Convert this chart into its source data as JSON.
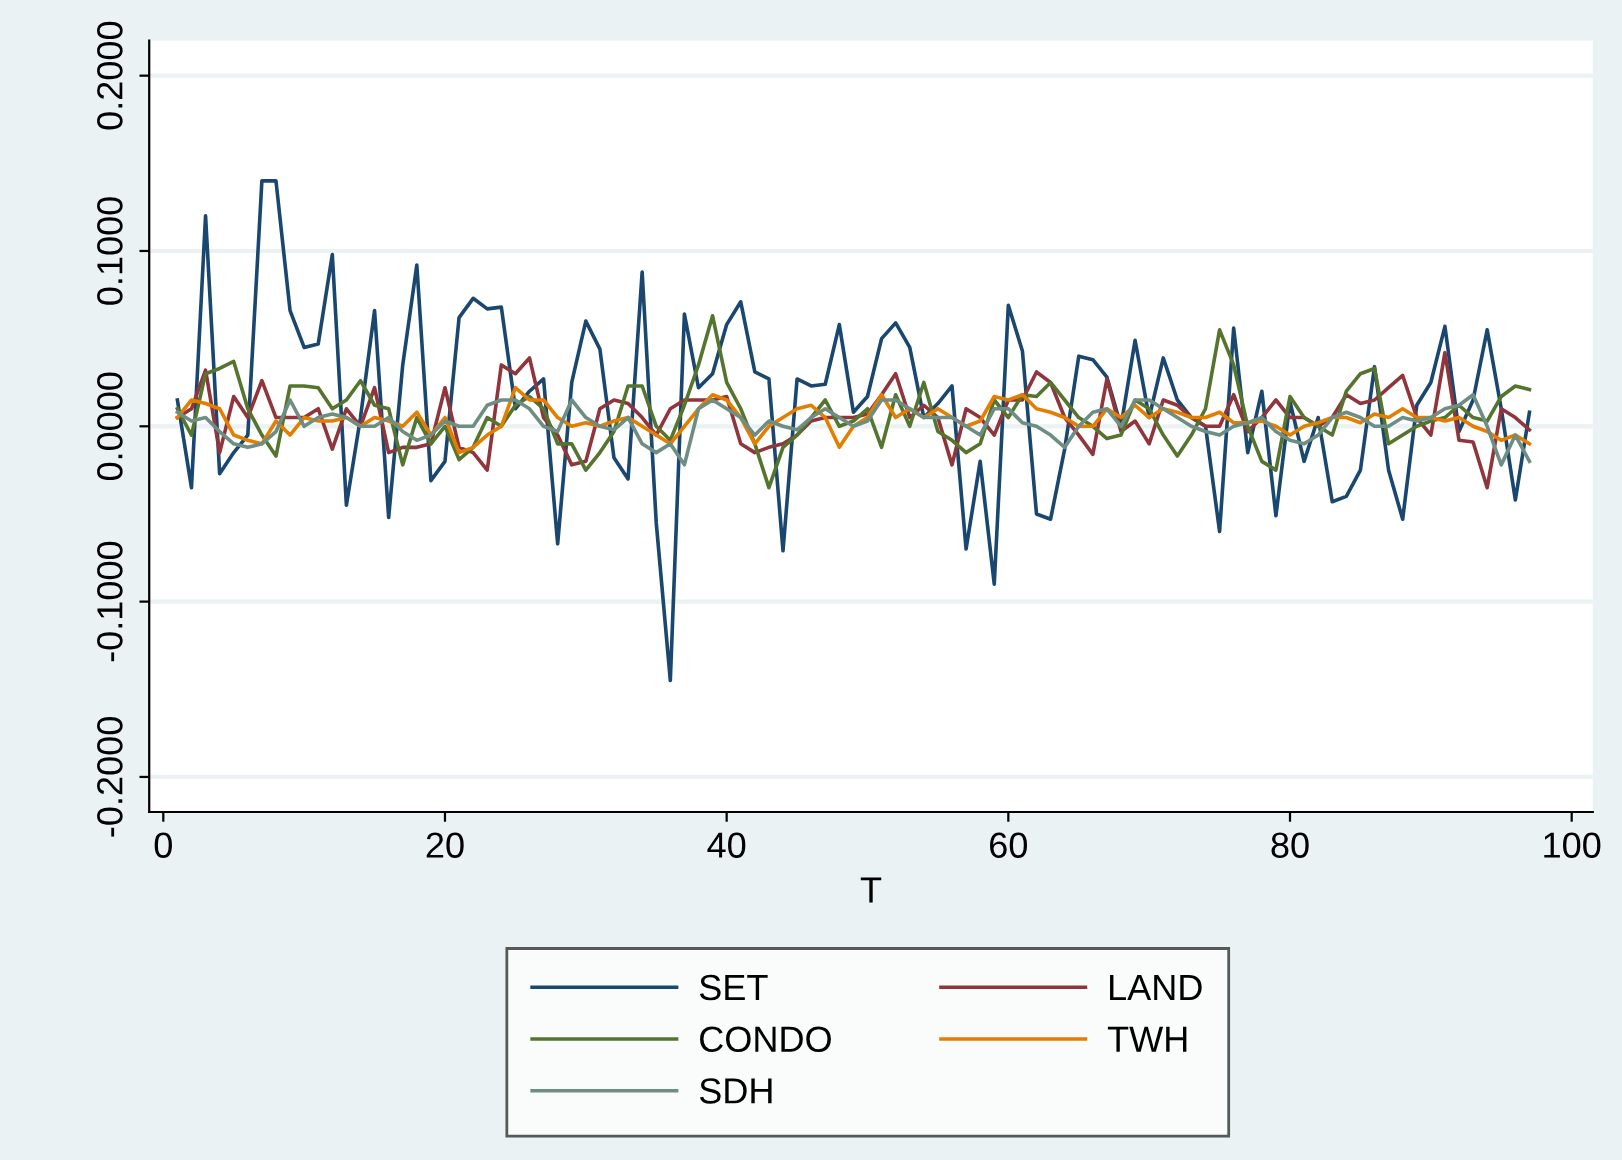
{
  "chart_data": {
    "type": "line",
    "xlabel": "T",
    "x": [
      1,
      2,
      3,
      4,
      5,
      6,
      7,
      8,
      9,
      10,
      11,
      12,
      13,
      14,
      15,
      16,
      17,
      18,
      19,
      20,
      21,
      22,
      23,
      24,
      25,
      26,
      27,
      28,
      29,
      30,
      31,
      32,
      33,
      34,
      35,
      36,
      37,
      38,
      39,
      40,
      41,
      42,
      43,
      44,
      45,
      46,
      47,
      48,
      49,
      50,
      51,
      52,
      53,
      54,
      55,
      56,
      57,
      58,
      59,
      60,
      61,
      62,
      63,
      64,
      65,
      66,
      67,
      68,
      69,
      70,
      71,
      72,
      73,
      74,
      75,
      76,
      77,
      78,
      79,
      80,
      81,
      82,
      83,
      84,
      85,
      86,
      87,
      88,
      89,
      90,
      91,
      92,
      93,
      94,
      95,
      96,
      97
    ],
    "series": [
      {
        "name": "SET",
        "color": "#1a476f",
        "values": [
          0.015,
          -0.035,
          0.12,
          -0.027,
          -0.015,
          -0.005,
          0.14,
          0.14,
          0.066,
          0.045,
          0.047,
          0.098,
          -0.045,
          0.005,
          0.066,
          -0.052,
          0.035,
          0.092,
          -0.031,
          -0.02,
          0.062,
          0.073,
          0.067,
          0.068,
          0.01,
          0.02,
          0.027,
          -0.067,
          0.025,
          0.06,
          0.044,
          -0.018,
          -0.03,
          0.088,
          -0.055,
          -0.145,
          0.064,
          0.022,
          0.03,
          0.058,
          0.071,
          0.031,
          0.027,
          -0.071,
          0.027,
          0.023,
          0.024,
          0.058,
          0.008,
          0.017,
          0.05,
          0.059,
          0.045,
          0.005,
          0.013,
          0.023,
          -0.07,
          -0.02,
          -0.09,
          0.069,
          0.043,
          -0.05,
          -0.053,
          -0.013,
          0.04,
          0.038,
          0.028,
          0.0,
          0.049,
          0.005,
          0.039,
          0.015,
          0.005,
          0.0,
          -0.06,
          0.056,
          -0.015,
          0.02,
          -0.051,
          0.014,
          -0.02,
          0.005,
          -0.043,
          -0.04,
          -0.025,
          0.034,
          -0.025,
          -0.053,
          0.012,
          0.025,
          0.057,
          -0.003,
          0.015,
          0.055,
          0.01,
          -0.042,
          0.008
        ]
      },
      {
        "name": "LAND",
        "color": "#90353b",
        "values": [
          0.005,
          0.01,
          0.032,
          -0.015,
          0.017,
          0.005,
          0.026,
          0.005,
          0.005,
          0.005,
          0.01,
          -0.013,
          0.01,
          0.0,
          0.022,
          -0.015,
          -0.012,
          -0.012,
          -0.01,
          0.022,
          -0.012,
          -0.015,
          -0.025,
          0.035,
          0.03,
          0.039,
          0.005,
          -0.005,
          -0.022,
          -0.02,
          0.01,
          0.015,
          0.013,
          0.005,
          -0.005,
          0.01,
          0.015,
          0.015,
          0.015,
          0.017,
          -0.01,
          -0.015,
          -0.012,
          -0.01,
          -0.005,
          0.003,
          0.005,
          0.005,
          0.005,
          0.007,
          0.018,
          0.03,
          0.005,
          0.012,
          0.005,
          -0.022,
          0.01,
          0.005,
          -0.005,
          0.015,
          0.015,
          0.031,
          0.025,
          0.005,
          -0.005,
          -0.016,
          0.027,
          -0.003,
          0.003,
          -0.01,
          0.015,
          0.012,
          0.005,
          0.0,
          0.0,
          0.018,
          -0.003,
          0.005,
          0.015,
          0.005,
          0.005,
          0.0,
          0.005,
          0.018,
          0.013,
          0.015,
          0.022,
          0.029,
          0.005,
          -0.005,
          0.042,
          -0.008,
          -0.009,
          -0.035,
          0.01,
          0.005,
          -0.002
        ]
      },
      {
        "name": "CONDO",
        "color": "#55752f",
        "values": [
          0.01,
          -0.005,
          0.03,
          0.033,
          0.037,
          0.01,
          -0.005,
          -0.017,
          0.023,
          0.023,
          0.022,
          0.01,
          0.015,
          0.026,
          0.012,
          0.01,
          -0.022,
          0.005,
          -0.01,
          0.0,
          -0.019,
          -0.012,
          0.005,
          0.0,
          0.012,
          0.017,
          0.01,
          -0.01,
          -0.01,
          -0.025,
          -0.015,
          -0.003,
          0.023,
          0.023,
          0.0,
          -0.008,
          0.012,
          0.035,
          0.063,
          0.025,
          0.01,
          -0.01,
          -0.035,
          -0.012,
          -0.005,
          0.005,
          0.015,
          0.0,
          0.003,
          0.01,
          -0.012,
          0.018,
          0.0,
          0.025,
          -0.003,
          -0.008,
          -0.015,
          -0.01,
          0.015,
          0.005,
          0.018,
          0.017,
          0.025,
          0.015,
          0.005,
          0.0,
          -0.007,
          -0.005,
          0.015,
          0.01,
          -0.005,
          -0.017,
          -0.005,
          0.01,
          0.055,
          0.035,
          0.0,
          -0.02,
          -0.025,
          0.017,
          0.005,
          0.0,
          -0.005,
          0.02,
          0.03,
          0.033,
          -0.01,
          -0.005,
          0.0,
          0.003,
          0.005,
          0.012,
          0.005,
          0.003,
          0.017,
          0.023,
          0.021
        ]
      },
      {
        "name": "TWH",
        "color": "#e37e00",
        "values": [
          0.005,
          0.015,
          0.013,
          0.01,
          -0.005,
          -0.008,
          -0.01,
          0.003,
          -0.005,
          0.005,
          0.003,
          0.003,
          0.005,
          0.0,
          0.005,
          0.003,
          0.0,
          0.008,
          -0.005,
          0.005,
          -0.015,
          -0.012,
          -0.005,
          0.0,
          0.022,
          0.015,
          0.015,
          0.005,
          0.0,
          0.002,
          0.0,
          0.003,
          0.005,
          0.0,
          -0.005,
          -0.01,
          0.0,
          0.01,
          0.018,
          0.015,
          0.005,
          -0.01,
          0.0,
          0.005,
          0.01,
          0.012,
          0.005,
          -0.012,
          0.0,
          0.005,
          0.018,
          0.005,
          0.01,
          0.005,
          0.01,
          0.005,
          0.0,
          0.003,
          0.017,
          0.015,
          0.018,
          0.01,
          0.008,
          0.005,
          0.0,
          0.0,
          0.01,
          0.005,
          0.012,
          0.005,
          0.01,
          0.008,
          0.005,
          0.005,
          0.008,
          0.002,
          0.002,
          0.003,
          0.0,
          -0.005,
          0.0,
          0.002,
          0.005,
          0.005,
          0.002,
          0.007,
          0.005,
          0.01,
          0.005,
          0.005,
          0.003,
          0.005,
          0.0,
          -0.003,
          -0.008,
          -0.005,
          -0.01
        ]
      },
      {
        "name": "SDH",
        "color": "#6e8e84",
        "values": [
          0.008,
          0.003,
          0.005,
          -0.003,
          -0.01,
          -0.012,
          -0.01,
          -0.003,
          0.015,
          0.0,
          0.005,
          0.007,
          0.005,
          0.0,
          0.0,
          0.005,
          -0.003,
          -0.008,
          -0.005,
          0.003,
          0.0,
          0.0,
          0.012,
          0.015,
          0.015,
          0.01,
          0.0,
          -0.003,
          0.015,
          0.005,
          0.0,
          -0.002,
          0.005,
          -0.01,
          -0.015,
          -0.01,
          -0.022,
          0.01,
          0.015,
          0.01,
          0.005,
          -0.005,
          0.003,
          0.0,
          -0.002,
          0.005,
          0.01,
          0.005,
          0.0,
          0.003,
          0.015,
          0.015,
          0.01,
          0.005,
          0.005,
          0.005,
          0.0,
          -0.005,
          0.01,
          0.01,
          0.002,
          0.0,
          -0.005,
          -0.012,
          0.0,
          0.008,
          0.01,
          0.0,
          0.015,
          0.015,
          0.01,
          0.005,
          0.0,
          -0.003,
          -0.005,
          0.0,
          0.002,
          0.005,
          -0.003,
          -0.008,
          -0.01,
          -0.005,
          0.005,
          0.008,
          0.005,
          0.0,
          0.0,
          0.005,
          0.003,
          0.005,
          0.01,
          0.012,
          0.018,
          0.0,
          -0.022,
          -0.005,
          -0.02
        ]
      }
    ],
    "xlim": [
      -1,
      101.5
    ],
    "xticks": [
      0,
      20,
      40,
      60,
      80,
      100
    ],
    "ylim": [
      -0.22,
      0.22
    ],
    "yticks": [
      {
        "value": -0.2,
        "label": "-0.2000"
      },
      {
        "value": -0.1,
        "label": "-0.1000"
      },
      {
        "value": 0,
        "label": "0.0000"
      },
      {
        "value": 0.1,
        "label": "0.1000"
      },
      {
        "value": 0.2,
        "label": "0.2000"
      }
    ],
    "grid": "y",
    "legend": "bottom",
    "marker": "none",
    "line_style": "solid"
  }
}
